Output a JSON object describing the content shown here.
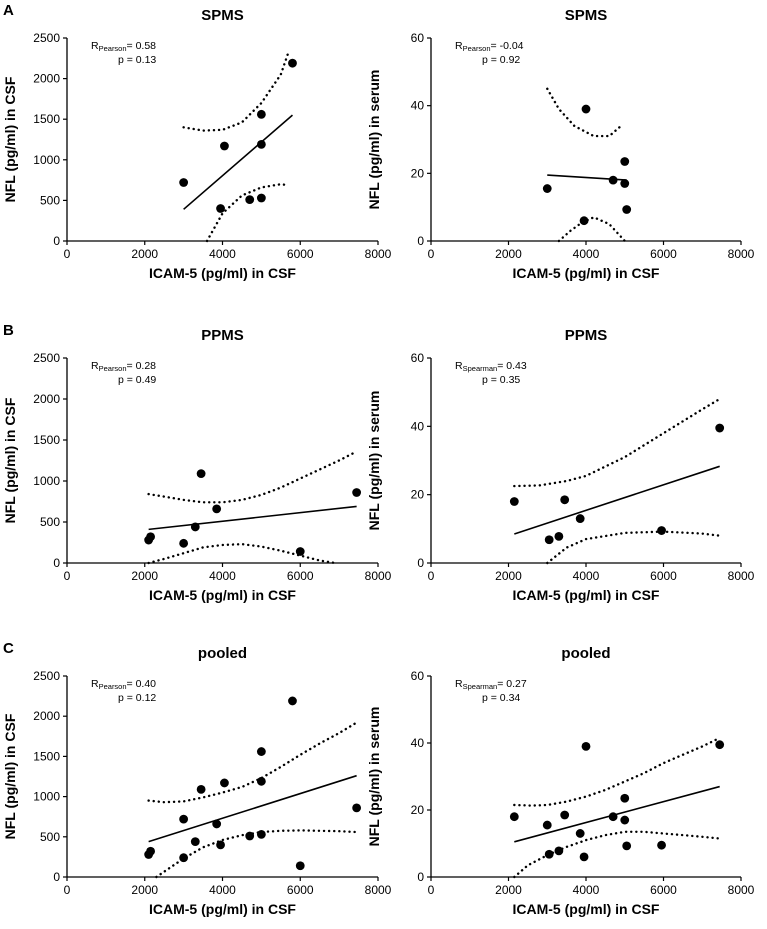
{
  "figure": {
    "colors": {
      "ink": "#000000",
      "background": "#ffffff"
    }
  },
  "chart_data": [
    {
      "panel": "A",
      "type": "scatter",
      "title": "SPMS",
      "xlabel": "ICAM-5 (pg/ml) in CSF",
      "ylabel": "NFL (pg/ml) in CSF",
      "xlim": [
        0,
        8000
      ],
      "ylim": [
        0,
        2500
      ],
      "xticks": [
        0,
        2000,
        4000,
        6000,
        8000
      ],
      "yticks": [
        0,
        500,
        1000,
        1500,
        2000,
        2500
      ],
      "stat_label": "R",
      "stat_sub": "Pearson",
      "stat_value": "= 0.58",
      "p_text": "p = 0.13",
      "points": [
        [
          3000,
          720
        ],
        [
          3950,
          400
        ],
        [
          4050,
          1170
        ],
        [
          4700,
          510
        ],
        [
          5000,
          530
        ],
        [
          5000,
          1560
        ],
        [
          5000,
          1190
        ],
        [
          5800,
          2190
        ]
      ],
      "fit": [
        [
          3000,
          390
        ],
        [
          5800,
          1550
        ]
      ],
      "ci_upper": [
        [
          3000,
          1400
        ],
        [
          3500,
          1360
        ],
        [
          4000,
          1370
        ],
        [
          4500,
          1460
        ],
        [
          5000,
          1700
        ],
        [
          5500,
          2050
        ],
        [
          5700,
          2330
        ]
      ],
      "ci_lower": [
        [
          3600,
          0
        ],
        [
          4000,
          340
        ],
        [
          4500,
          560
        ],
        [
          5000,
          660
        ],
        [
          5500,
          700
        ],
        [
          5650,
          690
        ]
      ]
    },
    {
      "panel": "",
      "type": "scatter",
      "title": "SPMS",
      "xlabel": "ICAM-5 (pg/ml) in CSF",
      "ylabel": "NFL (pg/ml) in serum",
      "xlim": [
        0,
        8000
      ],
      "ylim": [
        0,
        60
      ],
      "xticks": [
        0,
        2000,
        4000,
        6000,
        8000
      ],
      "yticks": [
        0,
        20,
        40,
        60
      ],
      "stat_label": "R",
      "stat_sub": "Pearson",
      "stat_value": "= -0.04",
      "p_text": "p = 0.92",
      "points": [
        [
          3000,
          15.5
        ],
        [
          3950,
          6
        ],
        [
          4000,
          39
        ],
        [
          4700,
          18
        ],
        [
          5000,
          23.5
        ],
        [
          5000,
          17
        ],
        [
          5050,
          9.3
        ]
      ],
      "fit": [
        [
          3000,
          19.5
        ],
        [
          5050,
          18
        ]
      ],
      "ci_upper": [
        [
          3000,
          45
        ],
        [
          3300,
          39
        ],
        [
          3700,
          34
        ],
        [
          4200,
          31
        ],
        [
          4600,
          31
        ],
        [
          4900,
          34
        ]
      ],
      "ci_lower": [
        [
          3300,
          0
        ],
        [
          3600,
          3
        ],
        [
          3900,
          5.5
        ],
        [
          4200,
          7
        ],
        [
          4600,
          5
        ],
        [
          5000,
          0
        ]
      ]
    },
    {
      "panel": "B",
      "type": "scatter",
      "title": "PPMS",
      "xlabel": "ICAM-5 (pg/ml) in CSF",
      "ylabel": "NFL (pg/ml) in CSF",
      "xlim": [
        0,
        8000
      ],
      "ylim": [
        0,
        2500
      ],
      "xticks": [
        0,
        2000,
        4000,
        6000,
        8000
      ],
      "yticks": [
        0,
        500,
        1000,
        1500,
        2000,
        2500
      ],
      "stat_label": "R",
      "stat_sub": "Pearson",
      "stat_value": "= 0.28",
      "p_text": "p = 0.49",
      "points": [
        [
          2100,
          280
        ],
        [
          2150,
          320
        ],
        [
          3000,
          240
        ],
        [
          3300,
          440
        ],
        [
          3450,
          1090
        ],
        [
          3850,
          660
        ],
        [
          6000,
          140
        ],
        [
          7450,
          860
        ]
      ],
      "fit": [
        [
          2100,
          410
        ],
        [
          7450,
          690
        ]
      ],
      "ci_upper": [
        [
          2100,
          840
        ],
        [
          2500,
          810
        ],
        [
          3000,
          770
        ],
        [
          3500,
          740
        ],
        [
          4000,
          740
        ],
        [
          4500,
          770
        ],
        [
          5000,
          830
        ],
        [
          5500,
          920
        ],
        [
          6000,
          1030
        ],
        [
          6500,
          1140
        ],
        [
          7000,
          1250
        ],
        [
          7450,
          1360
        ]
      ],
      "ci_lower": [
        [
          2100,
          0
        ],
        [
          2500,
          50
        ],
        [
          3000,
          120
        ],
        [
          3500,
          190
        ],
        [
          4000,
          220
        ],
        [
          4500,
          230
        ],
        [
          5000,
          200
        ],
        [
          5500,
          150
        ],
        [
          6000,
          90
        ],
        [
          6500,
          30
        ],
        [
          6900,
          0
        ]
      ]
    },
    {
      "panel": "",
      "type": "scatter",
      "title": "PPMS",
      "xlabel": "ICAM-5 (pg/ml) in CSF",
      "ylabel": "NFL (pg/ml) in serum",
      "xlim": [
        0,
        8000
      ],
      "ylim": [
        0,
        60
      ],
      "xticks": [
        0,
        2000,
        4000,
        6000,
        8000
      ],
      "yticks": [
        0,
        20,
        40,
        60
      ],
      "stat_label": "R",
      "stat_sub": "Spearman",
      "stat_value": "= 0.43",
      "p_text": "p = 0.35",
      "points": [
        [
          2150,
          18
        ],
        [
          3050,
          6.8
        ],
        [
          3300,
          7.8
        ],
        [
          3450,
          18.5
        ],
        [
          3850,
          13
        ],
        [
          5950,
          9.5
        ],
        [
          7450,
          39.5
        ]
      ],
      "fit": [
        [
          2150,
          8.5
        ],
        [
          7450,
          28.3
        ]
      ],
      "ci_upper": [
        [
          2150,
          22.5
        ],
        [
          2800,
          22.7
        ],
        [
          3500,
          24
        ],
        [
          4000,
          25.5
        ],
        [
          5000,
          31
        ],
        [
          6000,
          38
        ],
        [
          7000,
          45
        ],
        [
          7450,
          48
        ]
      ],
      "ci_lower": [
        [
          3000,
          0
        ],
        [
          3500,
          4.5
        ],
        [
          4000,
          7
        ],
        [
          5000,
          8.8
        ],
        [
          6000,
          9.2
        ],
        [
          7000,
          8.6
        ],
        [
          7450,
          8
        ]
      ]
    },
    {
      "panel": "C",
      "type": "scatter",
      "title": "pooled",
      "xlabel": "ICAM-5 (pg/ml) in CSF",
      "ylabel": "NFL (pg/ml) in CSF",
      "xlim": [
        0,
        8000
      ],
      "ylim": [
        0,
        2500
      ],
      "xticks": [
        0,
        2000,
        4000,
        6000,
        8000
      ],
      "yticks": [
        0,
        500,
        1000,
        1500,
        2000,
        2500
      ],
      "stat_label": "R",
      "stat_sub": "Pearson",
      "stat_value": "= 0.40",
      "p_text": "p = 0.12",
      "points": [
        [
          2100,
          280
        ],
        [
          2150,
          320
        ],
        [
          3000,
          240
        ],
        [
          3000,
          720
        ],
        [
          3300,
          440
        ],
        [
          3450,
          1090
        ],
        [
          3850,
          660
        ],
        [
          3950,
          400
        ],
        [
          4050,
          1170
        ],
        [
          4700,
          510
        ],
        [
          5000,
          530
        ],
        [
          5000,
          1560
        ],
        [
          5000,
          1190
        ],
        [
          5800,
          2190
        ],
        [
          6000,
          140
        ],
        [
          7450,
          860
        ]
      ],
      "fit": [
        [
          2100,
          440
        ],
        [
          7450,
          1260
        ]
      ],
      "ci_upper": [
        [
          2100,
          950
        ],
        [
          2500,
          930
        ],
        [
          3000,
          940
        ],
        [
          3500,
          990
        ],
        [
          4000,
          1050
        ],
        [
          4500,
          1120
        ],
        [
          5000,
          1230
        ],
        [
          5500,
          1370
        ],
        [
          6000,
          1520
        ],
        [
          6500,
          1660
        ],
        [
          7000,
          1790
        ],
        [
          7450,
          1920
        ]
      ],
      "ci_lower": [
        [
          2300,
          0
        ],
        [
          2600,
          100
        ],
        [
          3000,
          230
        ],
        [
          3500,
          370
        ],
        [
          4000,
          460
        ],
        [
          4500,
          520
        ],
        [
          5000,
          560
        ],
        [
          5500,
          575
        ],
        [
          6000,
          580
        ],
        [
          6500,
          575
        ],
        [
          7000,
          570
        ],
        [
          7450,
          560
        ]
      ]
    },
    {
      "panel": "",
      "type": "scatter",
      "title": "pooled",
      "xlabel": "ICAM-5 (pg/ml) in CSF",
      "ylabel": "NFL (pg/ml) in serum",
      "xlim": [
        0,
        8000
      ],
      "ylim": [
        0,
        60
      ],
      "xticks": [
        0,
        2000,
        4000,
        6000,
        8000
      ],
      "yticks": [
        0,
        20,
        40,
        60
      ],
      "stat_label": "R",
      "stat_sub": "Spearman",
      "stat_value": "= 0.27",
      "p_text": "p = 0.34",
      "points": [
        [
          2150,
          18
        ],
        [
          3000,
          15.5
        ],
        [
          3050,
          6.8
        ],
        [
          3300,
          7.8
        ],
        [
          3450,
          18.5
        ],
        [
          3850,
          13
        ],
        [
          3950,
          6
        ],
        [
          4000,
          39
        ],
        [
          4700,
          18
        ],
        [
          5000,
          23.5
        ],
        [
          5000,
          17
        ],
        [
          5050,
          9.3
        ],
        [
          5950,
          9.5
        ],
        [
          7450,
          39.5
        ]
      ],
      "fit": [
        [
          2150,
          10.5
        ],
        [
          7450,
          27
        ]
      ],
      "ci_upper": [
        [
          2150,
          21.5
        ],
        [
          2600,
          21.3
        ],
        [
          3000,
          21.5
        ],
        [
          3500,
          22.5
        ],
        [
          4000,
          24
        ],
        [
          4500,
          26
        ],
        [
          5000,
          28.5
        ],
        [
          5500,
          31
        ],
        [
          6000,
          34
        ],
        [
          6500,
          36.5
        ],
        [
          7000,
          39
        ],
        [
          7450,
          41.5
        ]
      ],
      "ci_lower": [
        [
          2150,
          0
        ],
        [
          2500,
          3.5
        ],
        [
          3000,
          6.5
        ],
        [
          3500,
          9
        ],
        [
          4000,
          11
        ],
        [
          4500,
          12.5
        ],
        [
          5000,
          13.5
        ],
        [
          5500,
          13.5
        ],
        [
          6000,
          13
        ],
        [
          6500,
          12.5
        ],
        [
          7000,
          12
        ],
        [
          7450,
          11.5
        ]
      ]
    }
  ]
}
